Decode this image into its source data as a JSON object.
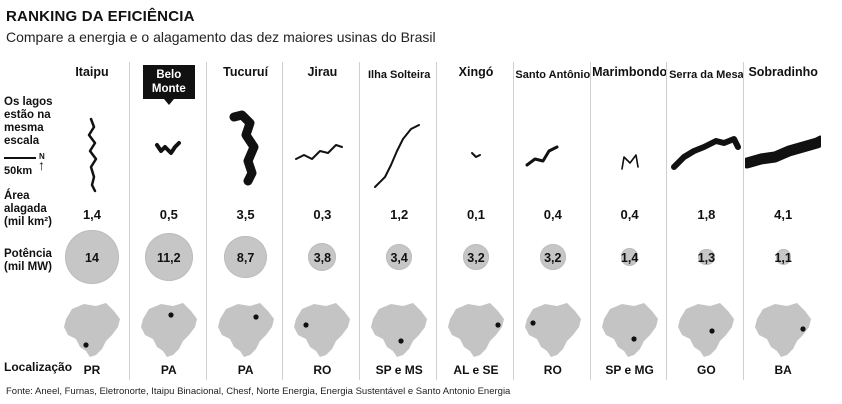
{
  "title": "RANKING DA EFICIÊNCIA",
  "subtitle": "Compare a energia e o alagamento das dez maiores usinas do Brasil",
  "labels": {
    "lakes": "Os lagos estão na mesma escala",
    "scale": "50km",
    "north": "N",
    "area": "Área alagada (mil km²)",
    "power": "Potência (mil MW)",
    "location": "Localização"
  },
  "source": "Fonte: Aneel, Furnas, Eletronorte, Itaipu Binacional, Chesf, Norte Energia, Energia Sustentável e Santo Antonio Energia",
  "colors": {
    "circle": "#c6c6c6",
    "map": "#c4c4c4",
    "lake": "#111111",
    "highlight": "#111111"
  },
  "chart_data": {
    "type": "table",
    "title": "RANKING DA EFICIÊNCIA",
    "subtitle": "Compare a energia e o alagamento das dez maiores usinas do Brasil",
    "categories": [
      "Itaipu",
      "Belo Monte",
      "Tucuruí",
      "Jirau",
      "Ilha Solteira",
      "Xingó",
      "Santo Antônio",
      "Marimbondo",
      "Serra da Mesa",
      "Sobradinho"
    ],
    "area_label": "Área alagada (mil km²)",
    "area_display": [
      "1,4",
      "0,5",
      "3,5",
      "0,3",
      "1,2",
      "0,1",
      "0,4",
      "0,4",
      "1,8",
      "4,1"
    ],
    "area": [
      1.4,
      0.5,
      3.5,
      0.3,
      1.2,
      0.1,
      0.4,
      0.4,
      1.8,
      4.1
    ],
    "power_label": "Potência (mil MW)",
    "power_display": [
      "14",
      "11,2",
      "8,7",
      "3,8",
      "3,4",
      "3,2",
      "3,2",
      "1,4",
      "1,3",
      "1,1"
    ],
    "power": [
      14,
      11.2,
      8.7,
      3.8,
      3.4,
      3.2,
      3.2,
      1.4,
      1.3,
      1.1
    ],
    "location": [
      "PR",
      "PA",
      "PA",
      "RO",
      "SP e MS",
      "AL e SE",
      "RO",
      "SP e MG",
      "GO",
      "BA"
    ],
    "highlighted": "Belo Monte"
  }
}
